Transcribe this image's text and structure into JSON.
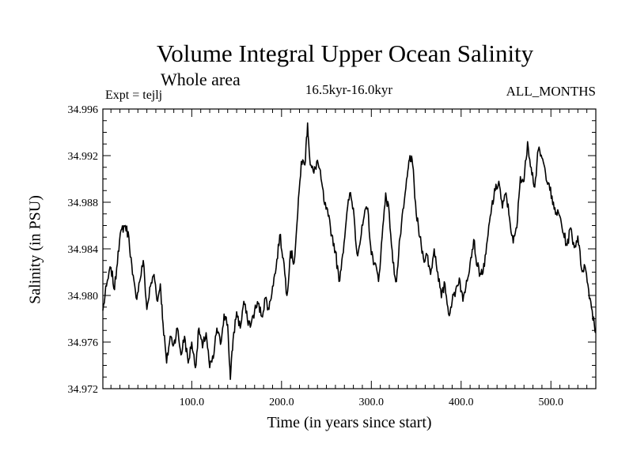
{
  "chart_data": {
    "type": "line",
    "title": "Volume Integral Upper Ocean Salinity",
    "subtitle": "Whole area",
    "experiment": "Expt = tejlj",
    "period": "16.5kyr-16.0kyr",
    "months": "ALL_MONTHS",
    "xlabel": "Time (in years since start)",
    "ylabel": "Salinity (in PSU)",
    "xlim": [
      1,
      550
    ],
    "ylim": [
      34.972,
      34.996
    ],
    "xticks": [
      100,
      200,
      300,
      400,
      500
    ],
    "xtick_labels": [
      "100.0",
      "200.0",
      "300.0",
      "400.0",
      "500.0"
    ],
    "yticks": [
      34.972,
      34.976,
      34.98,
      34.984,
      34.988,
      34.992,
      34.996
    ],
    "ytick_labels": [
      "34.972",
      "34.976",
      "34.980",
      "34.984",
      "34.988",
      "34.992",
      "34.996"
    ],
    "series": [
      {
        "name": "Salinity",
        "color": "#000000",
        "x": [
          1,
          5,
          10,
          14,
          18,
          22,
          26,
          30,
          34,
          38,
          42,
          46,
          50,
          54,
          58,
          62,
          65,
          68,
          72,
          76,
          80,
          84,
          88,
          92,
          96,
          100,
          104,
          108,
          112,
          116,
          120,
          124,
          128,
          132,
          136,
          140,
          143,
          146,
          150,
          154,
          158,
          162,
          166,
          170,
          174,
          178,
          182,
          186,
          190,
          194,
          198,
          202,
          206,
          210,
          214,
          218,
          222,
          226,
          229,
          232,
          236,
          240,
          244,
          248,
          252,
          256,
          260,
          264,
          268,
          272,
          276,
          280,
          284,
          288,
          292,
          296,
          300,
          304,
          308,
          312,
          316,
          320,
          324,
          328,
          332,
          336,
          340,
          343,
          346,
          350,
          354,
          358,
          362,
          366,
          370,
          374,
          378,
          382,
          386,
          390,
          394,
          398,
          402,
          406,
          410,
          414,
          418,
          422,
          426,
          430,
          434,
          438,
          442,
          446,
          450,
          454,
          458,
          462,
          466,
          470,
          474,
          478,
          482,
          486,
          490,
          494,
          498,
          502,
          506,
          510,
          514,
          518,
          522,
          526,
          530,
          534,
          538,
          542,
          546,
          550
        ],
        "values": [
          34.9787,
          34.9808,
          34.9824,
          34.9805,
          34.9838,
          34.9857,
          34.986,
          34.985,
          34.9818,
          34.9798,
          34.9812,
          34.983,
          34.9788,
          34.9808,
          34.9818,
          34.9795,
          34.981,
          34.9776,
          34.9742,
          34.9765,
          34.9758,
          34.9772,
          34.9749,
          34.9765,
          34.9742,
          34.976,
          34.9738,
          34.9772,
          34.9755,
          34.9768,
          34.9738,
          34.9746,
          34.9772,
          34.9758,
          34.9784,
          34.9775,
          34.9728,
          34.9762,
          34.9786,
          34.9772,
          34.9795,
          34.9779,
          34.9775,
          34.9787,
          34.9793,
          34.9782,
          34.9798,
          34.9788,
          34.9808,
          34.9824,
          34.9852,
          34.9832,
          34.98,
          34.9838,
          34.9828,
          34.987,
          34.9915,
          34.9912,
          34.9948,
          34.9912,
          34.9905,
          34.9916,
          34.99,
          34.9878,
          34.9868,
          34.9852,
          34.9838,
          34.9812,
          34.9835,
          34.9864,
          34.9888,
          34.9875,
          34.9836,
          34.9848,
          34.9868,
          34.9875,
          34.9835,
          34.9828,
          34.9812,
          34.985,
          34.9888,
          34.987,
          34.9828,
          34.9812,
          34.985,
          34.9875,
          34.9902,
          34.992,
          34.9912,
          34.987,
          34.985,
          34.9832,
          34.9835,
          34.9818,
          34.984,
          34.982,
          34.9798,
          34.981,
          34.9784,
          34.9795,
          34.9805,
          34.9815,
          34.9795,
          34.9813,
          34.9828,
          34.9848,
          34.9825,
          34.9818,
          34.9825,
          34.9852,
          34.9876,
          34.989,
          34.9898,
          34.9875,
          34.9888,
          34.9866,
          34.9845,
          34.9858,
          34.9902,
          34.9898,
          34.9932,
          34.991,
          34.9893,
          34.9925,
          34.9918,
          34.9905,
          34.9896,
          34.9878,
          34.9871,
          34.9868,
          34.9853,
          34.9843,
          34.9858,
          34.9841,
          34.9851,
          34.9823,
          34.9825,
          34.9805,
          34.9787,
          34.9768
        ]
      }
    ]
  }
}
